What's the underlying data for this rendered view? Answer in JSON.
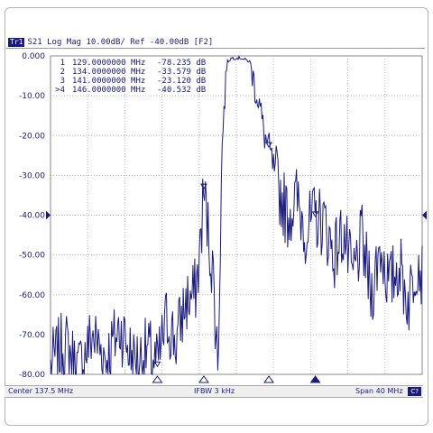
{
  "header": {
    "trace_tag": "Tr1",
    "info": "S21 Log Mag 10.00dB/ Ref -40.00dB [F2]"
  },
  "status_bar": {
    "center": "Center 137.5 MHz",
    "ifbw": "IFBW 3 kHz",
    "span": "Span 40 MHz",
    "badge": "C?"
  },
  "colors": {
    "trace": "#1a1a80",
    "grid": "#b8b8b8",
    "text": "#1a1a80"
  },
  "chart_data": {
    "type": "line",
    "title": "",
    "xlabel": "",
    "ylabel": "",
    "xlim": [
      117.5,
      157.5
    ],
    "ylim": [
      -80,
      0
    ],
    "grid": true,
    "y_ticks": [
      "0.000",
      "-10.00",
      "-20.00",
      "-30.00",
      "-40.00",
      "-50.00",
      "-60.00",
      "-70.00",
      "-80.00"
    ],
    "reference_level": -40,
    "markers": [
      {
        "label": "1",
        "freq": "129.0000000 MHz",
        "value": "-78.235 dB",
        "x": 129.0,
        "y": -78.235
      },
      {
        "label": "2",
        "freq": "134.0000000 MHz",
        "value": "-33.579 dB",
        "x": 134.0,
        "y": -33.579
      },
      {
        "label": "3",
        "freq": "141.0000000 MHz",
        "value": "-23.120 dB",
        "x": 141.0,
        "y": -23.12
      },
      {
        "label": ">4",
        "freq": "146.0000000 MHz",
        "value": "-40.532 dB",
        "x": 146.0,
        "y": -40.532
      }
    ],
    "series": [
      {
        "x": [
          117.5,
          119.0,
          120.5,
          122.0,
          123.5,
          125.0,
          126.5,
          128.0,
          129.0,
          130.0,
          131.0,
          132.0,
          133.0,
          133.5,
          134.0,
          134.5,
          135.0,
          135.5,
          136.0,
          136.5,
          137.0,
          138.0,
          139.0,
          139.5,
          140.0,
          140.5,
          141.0,
          141.5,
          142.0,
          143.0,
          144.0,
          145.0,
          146.0,
          147.0,
          148.0,
          149.0,
          150.0,
          151.0,
          152.0,
          153.0,
          154.0,
          155.0,
          156.0,
          157.0,
          157.5
        ],
        "y": [
          -78,
          -72,
          -79,
          -70,
          -76,
          -68,
          -77,
          -74,
          -78,
          -66,
          -72,
          -62,
          -60,
          -52,
          -33.6,
          -45,
          -55,
          -78,
          -20,
          -1.5,
          -0.5,
          -0.5,
          -1.5,
          -8,
          -12,
          -20,
          -23,
          -28,
          -33,
          -40,
          -36,
          -44,
          -40.5,
          -42,
          -50,
          -44,
          -56,
          -46,
          -60,
          -48,
          -58,
          -52,
          -62,
          -50,
          -55
        ]
      }
    ]
  }
}
